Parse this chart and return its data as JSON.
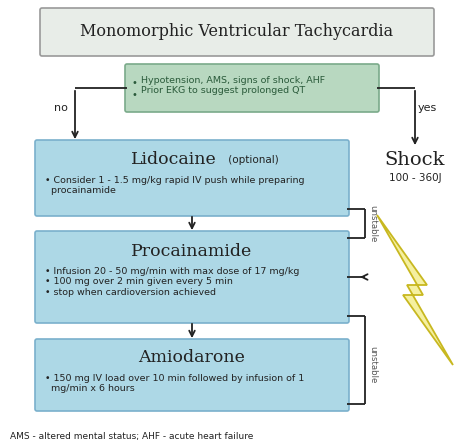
{
  "title": "Monomorphic Ventricular Tachycardia",
  "title_bg": "#e8ede8",
  "title_border": "#999999",
  "bg_color": "#ffffff",
  "decision_box": {
    "text": "  Hypotension, AMS, signs of shock, AHF\n  Prior EKG to suggest prolonged QT",
    "bg": "#b8d8c0",
    "border": "#7aaa8a"
  },
  "lido_title": "Lidocaine",
  "lido_suffix": " (optional)",
  "lido_text": "  Consider 1 - 1.5 mg/kg rapid IV push while preparing\nprocainamide",
  "proc_title": "Procainamide",
  "proc_text": "  Infusion 20 - 50 mg/min with max dose of 17 mg/kg\n  100 mg over 2 min given every 5 min\n  stop when cardioversion achieved",
  "amio_title": "Amiodarone",
  "amio_text": "  150 mg IV load over 10 min followed by infusion of 1\nmg/min x 6 hours",
  "box_bg": "#add8e6",
  "box_border": "#7ab0cc",
  "shock_label": "Shock",
  "shock_sub": "100 - 360J",
  "footnote": "AMS - altered mental status; AHF - acute heart failure",
  "arrow_color": "#222222",
  "text_color": "#222222",
  "unstable_color": "#555555",
  "bolt_fill": "#f5f0a0",
  "bolt_edge": "#c8b820"
}
